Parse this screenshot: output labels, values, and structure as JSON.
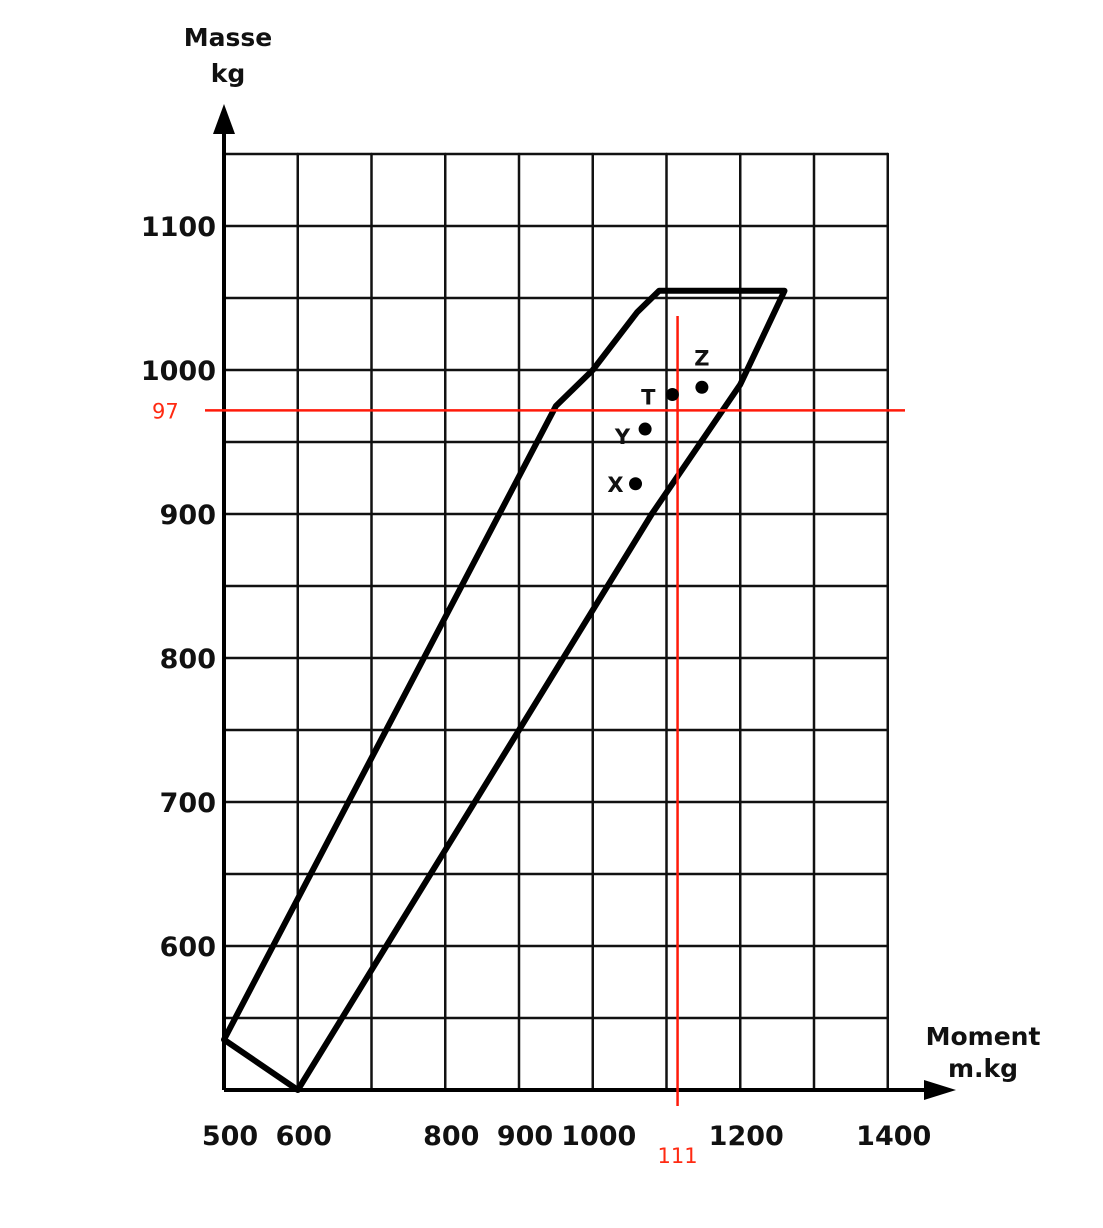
{
  "chart_data": {
    "type": "scatter",
    "ylabel_lines": [
      "Masse",
      "kg"
    ],
    "xlabel_lines": [
      "Moment",
      "m.kg"
    ],
    "x_ticks": [
      500,
      600,
      800,
      900,
      1000,
      1200,
      1400
    ],
    "y_ticks": [
      600,
      700,
      800,
      900,
      1000,
      1100
    ],
    "xlim": [
      500,
      1400
    ],
    "ylim": [
      500,
      1150
    ],
    "grid": true,
    "envelope": [
      {
        "x": 500,
        "y": 535
      },
      {
        "x": 950,
        "y": 975
      },
      {
        "x": 1000,
        "y": 1000
      },
      {
        "x": 1060,
        "y": 1040
      },
      {
        "x": 1090,
        "y": 1055
      },
      {
        "x": 1260,
        "y": 1055
      },
      {
        "x": 1200,
        "y": 990
      },
      {
        "x": 1080,
        "y": 900
      },
      {
        "x": 600,
        "y": 500
      }
    ],
    "points": [
      {
        "label": "Z",
        "x": 1148,
        "y": 988
      },
      {
        "label": "T",
        "x": 1108,
        "y": 983
      },
      {
        "label": "Y",
        "x": 1071,
        "y": 959
      },
      {
        "label": "X",
        "x": 1058,
        "y": 921
      }
    ],
    "reference_lines": [
      {
        "orientation": "horizontal",
        "value": 972,
        "label": "97",
        "color": "#ff1a0a"
      },
      {
        "orientation": "vertical",
        "value": 1115,
        "label": "111",
        "color": "#ff1a0a"
      }
    ]
  }
}
